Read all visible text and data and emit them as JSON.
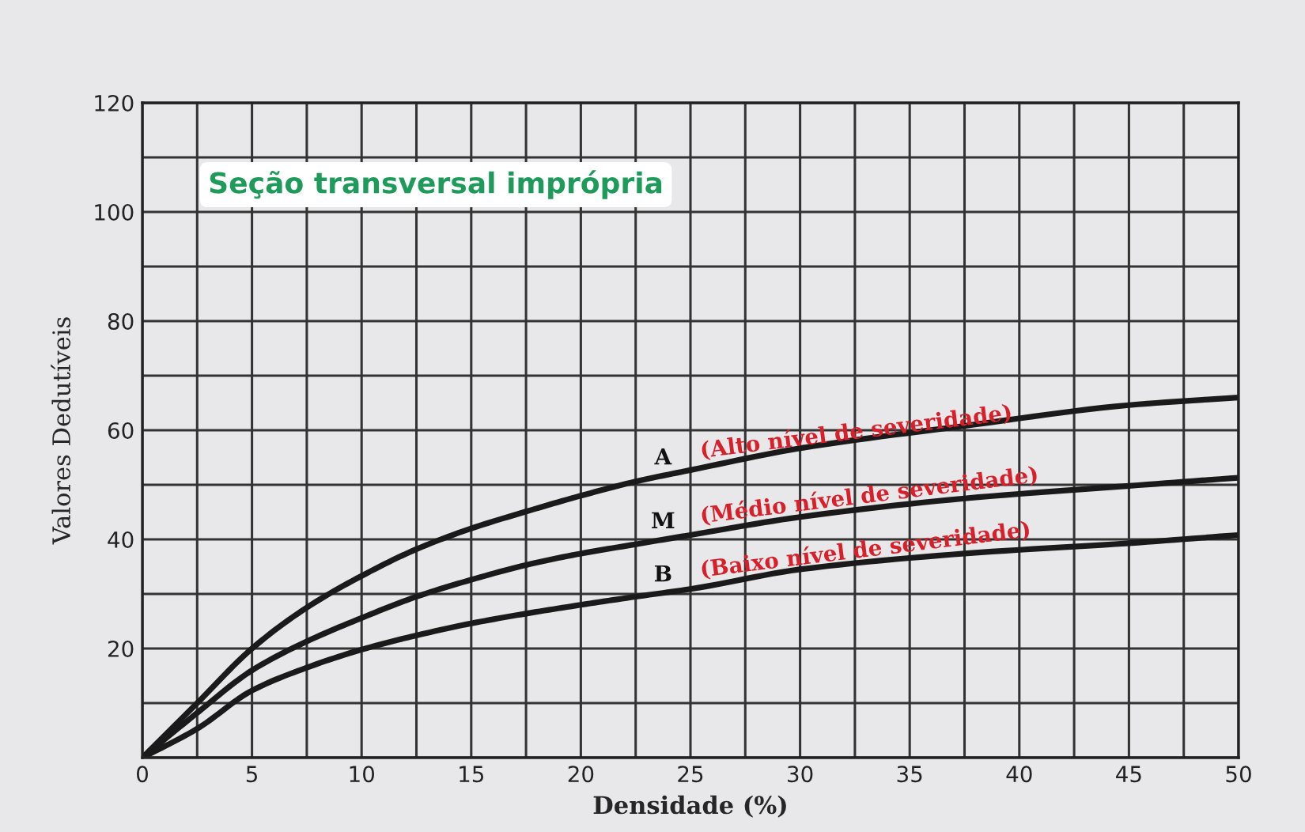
{
  "chart_data": {
    "type": "line",
    "title": "Seção transversal imprópria",
    "xlabel": "Densidade (%)",
    "ylabel": "Valores Dedutíveis",
    "x": [
      0,
      2.5,
      5,
      7.5,
      10,
      12.5,
      15,
      17.5,
      20,
      22.5,
      25,
      30,
      37.5,
      45,
      50
    ],
    "series": [
      {
        "name": "A",
        "color": "#1a1a1a",
        "values": [
          0,
          10,
          20,
          27.5,
          33.3,
          38.2,
          42,
          45.1,
          48,
          50.6,
          52.7,
          56.7,
          60.8,
          64.6,
          66
        ]
      },
      {
        "name": "M",
        "color": "#1a1a1a",
        "values": [
          0,
          8.2,
          16,
          21.3,
          25.6,
          29.5,
          32.6,
          35.3,
          37.4,
          39.1,
          40.8,
          44.1,
          47.5,
          49.8,
          51.3
        ]
      },
      {
        "name": "B",
        "color": "#1a1a1a",
        "values": [
          0,
          5.3,
          12.3,
          16.5,
          19.8,
          22.4,
          24.6,
          26.4,
          28,
          29.5,
          30.9,
          34.5,
          37.4,
          39.3,
          40.8
        ]
      }
    ],
    "annotations": [
      "(Alto nível de severidade)",
      "(Médio nível de severidade)",
      "(Baixo nível de severidade)"
    ],
    "xlim": [
      0,
      50
    ],
    "ylim": [
      0,
      120
    ],
    "xticks": [
      0,
      {
        "value": 2.5,
        "label": null
      },
      5,
      {
        "value": 7.5,
        "label": null
      },
      10,
      {
        "value": 12.5,
        "label": null
      },
      15,
      {
        "value": 17.5,
        "label": null
      },
      20,
      {
        "value": 22.5,
        "label": null
      },
      25,
      {
        "value": 27.5,
        "label": null
      },
      30,
      {
        "value": 32.5,
        "label": null
      },
      35,
      {
        "value": 37.5,
        "label": null
      },
      40,
      {
        "value": 42.5,
        "label": null
      },
      45,
      {
        "value": 47.5,
        "label": null
      },
      50
    ],
    "yticks": [
      {
        "value": 0,
        "label": null
      },
      {
        "value": 10,
        "label": null
      },
      20,
      {
        "value": 30,
        "label": null
      },
      40,
      {
        "value": 50,
        "label": null
      },
      60,
      {
        "value": 70,
        "label": null
      },
      80,
      {
        "value": 90,
        "label": null
      },
      100,
      {
        "value": 110,
        "label": null
      },
      120
    ],
    "grid": true,
    "marker": "none",
    "line_style": "solid"
  }
}
